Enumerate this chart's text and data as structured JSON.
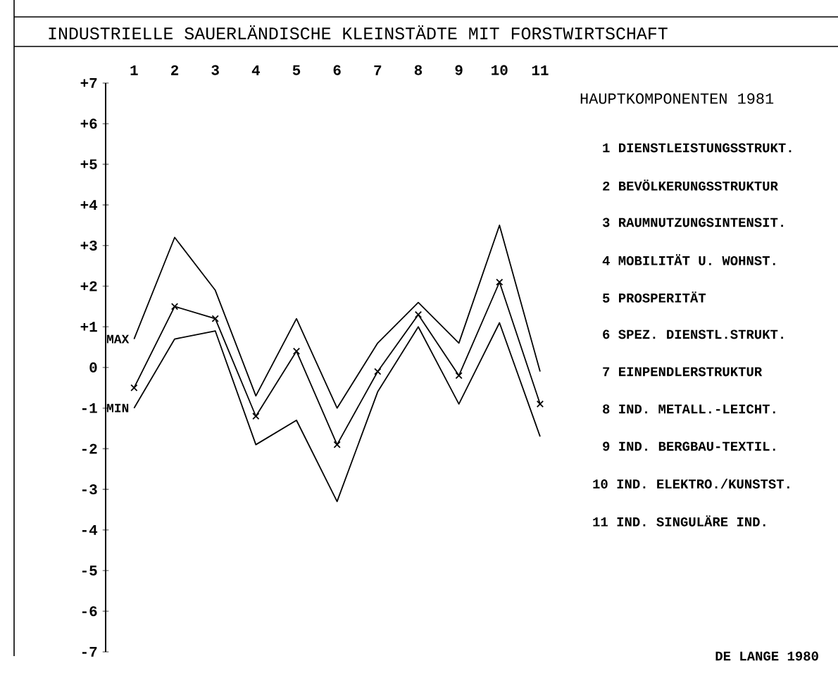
{
  "chart_data": {
    "type": "line",
    "title": "INDUSTRIELLE SAUERLÄNDISCHE KLEINSTÄDTE MIT FORSTWIRTSCHAFT",
    "categories": [
      "1",
      "2",
      "3",
      "4",
      "5",
      "6",
      "7",
      "8",
      "9",
      "10",
      "11"
    ],
    "series": [
      {
        "name": "MAX",
        "color": "#000000",
        "marker": "none",
        "values": [
          0.7,
          3.2,
          1.9,
          -0.7,
          1.2,
          -1.0,
          0.6,
          1.6,
          0.6,
          3.5,
          -0.1
        ]
      },
      {
        "color": "#000000",
        "marker": "cross",
        "values": [
          -0.5,
          1.5,
          1.2,
          -1.2,
          0.4,
          -1.9,
          -0.1,
          1.3,
          -0.2,
          2.1,
          -0.9
        ]
      },
      {
        "name": "MIN",
        "color": "#000000",
        "marker": "none",
        "values": [
          -1.0,
          0.7,
          0.9,
          -1.9,
          -1.3,
          -3.3,
          -0.6,
          1.0,
          -0.9,
          1.1,
          -1.7
        ]
      }
    ],
    "ylim": [
      -7,
      7
    ],
    "yticks": [
      {
        "value": 7,
        "label": "+7"
      },
      {
        "value": 6,
        "label": "+6"
      },
      {
        "value": 5,
        "label": "+5"
      },
      {
        "value": 4,
        "label": "+4"
      },
      {
        "value": 3,
        "label": "+3"
      },
      {
        "value": 2,
        "label": "+2"
      },
      {
        "value": 1,
        "label": "+1"
      },
      0,
      -1,
      -2,
      -3,
      -4,
      -5,
      -6,
      -7
    ],
    "grid": false,
    "legend": false,
    "line_style": "solid",
    "annotations": [
      "HAUPTKOMPONENTEN 1981",
      "1 DIENSTLEISTUNGSSTRUKT.",
      "2 BEVÖLKERUNGSSTRUKTUR",
      "3 RAUMNUTZUNGSINTENSIT.",
      "4 MOBILITÄT U. WOHNST.",
      "5 PROSPERITÄT",
      "6 SPEZ. DIENSTL.STRUKT.",
      "7 EINPENDLERSTRUKTUR",
      "8 IND. METALL.-LEICHT.",
      "9 IND. BERGBAU-TEXTIL.",
      "10 IND. ELEKTRO./KUNSTST.",
      "11 IND. SINGULÄRE IND.",
      "DE LANGE 1980"
    ]
  }
}
